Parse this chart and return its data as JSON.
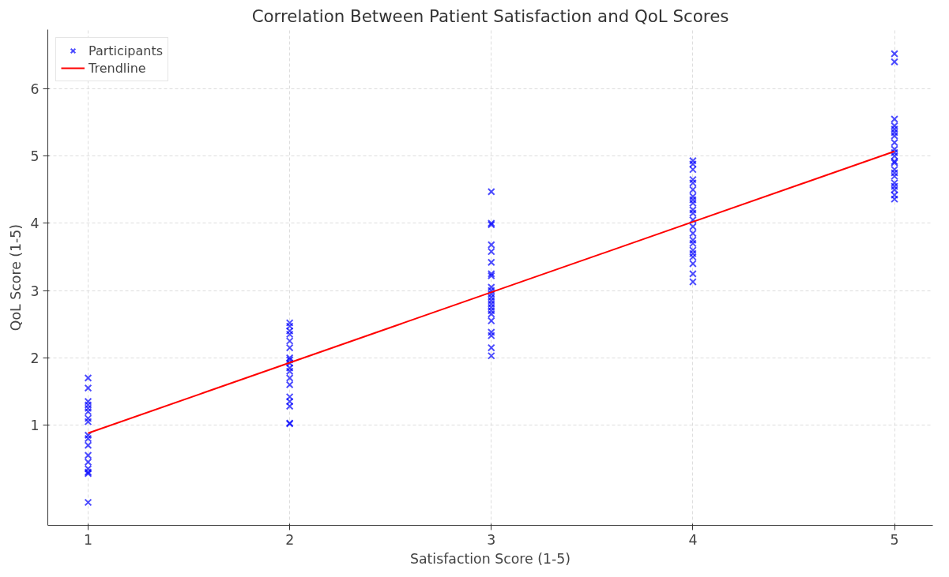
{
  "chart_data": {
    "type": "scatter",
    "title": "Correlation Between Patient Satisfaction and QoL Scores",
    "xlabel": "Satisfaction Score (1-5)",
    "ylabel": "QoL Score (1-5)",
    "xlim": [
      0.8,
      5.19
    ],
    "ylim": [
      -0.49,
      6.88
    ],
    "xticks": [
      1,
      2,
      3,
      4,
      5
    ],
    "yticks": [
      1,
      2,
      3,
      4,
      5,
      6
    ],
    "grid": true,
    "legend": "top left",
    "series": [
      {
        "name": "Participants",
        "color": "#0000ff",
        "marker": "cross",
        "x": [
          1,
          1,
          1,
          1,
          1,
          1,
          1,
          1,
          1,
          1,
          1,
          1,
          1,
          1,
          1,
          1,
          1,
          2,
          2,
          2,
          2,
          2,
          2,
          2,
          2,
          2,
          2,
          2,
          2,
          2,
          2,
          2,
          2,
          2,
          2,
          3,
          3,
          3,
          3,
          3,
          3,
          3,
          3,
          3,
          3,
          3,
          3,
          3,
          3,
          3,
          3,
          3,
          3,
          3,
          3,
          3,
          3,
          4,
          4,
          4,
          4,
          4,
          4,
          4,
          4,
          4,
          4,
          4,
          4,
          4,
          4,
          4,
          4,
          4,
          4,
          4,
          4,
          4,
          4,
          5,
          5,
          5,
          5,
          5,
          5,
          5,
          5,
          5,
          5,
          5,
          5,
          5,
          5,
          5,
          5,
          5,
          5,
          5,
          5,
          5
        ],
        "values": [
          1.7,
          1.55,
          1.35,
          1.3,
          1.25,
          1.2,
          1.1,
          1.05,
          0.85,
          0.8,
          0.7,
          0.55,
          0.45,
          0.35,
          0.3,
          0.28,
          -0.15,
          2.52,
          2.47,
          2.4,
          2.35,
          2.25,
          2.15,
          2.0,
          1.97,
          1.92,
          1.85,
          1.8,
          1.7,
          1.6,
          1.42,
          1.35,
          1.28,
          1.03,
          1.02,
          4.47,
          4.0,
          3.98,
          3.68,
          3.58,
          3.42,
          3.25,
          3.22,
          3.05,
          3.0,
          2.95,
          2.9,
          2.85,
          2.8,
          2.75,
          2.7,
          2.65,
          2.55,
          2.38,
          2.33,
          2.15,
          2.03,
          4.93,
          4.88,
          4.8,
          4.65,
          4.6,
          4.5,
          4.4,
          4.35,
          4.3,
          4.2,
          4.15,
          4.05,
          3.95,
          3.85,
          3.75,
          3.7,
          3.6,
          3.55,
          3.5,
          3.4,
          3.25,
          3.13,
          6.52,
          6.4,
          5.55,
          5.45,
          5.4,
          5.35,
          5.3,
          5.2,
          5.1,
          5.05,
          5.0,
          4.92,
          4.9,
          4.8,
          4.75,
          4.7,
          4.6,
          4.55,
          4.5,
          4.42,
          4.36
        ]
      },
      {
        "name": "Trendline",
        "type": "line",
        "color": "#ff0000",
        "x": [
          1,
          5
        ],
        "values": [
          0.88,
          5.07
        ]
      }
    ]
  }
}
